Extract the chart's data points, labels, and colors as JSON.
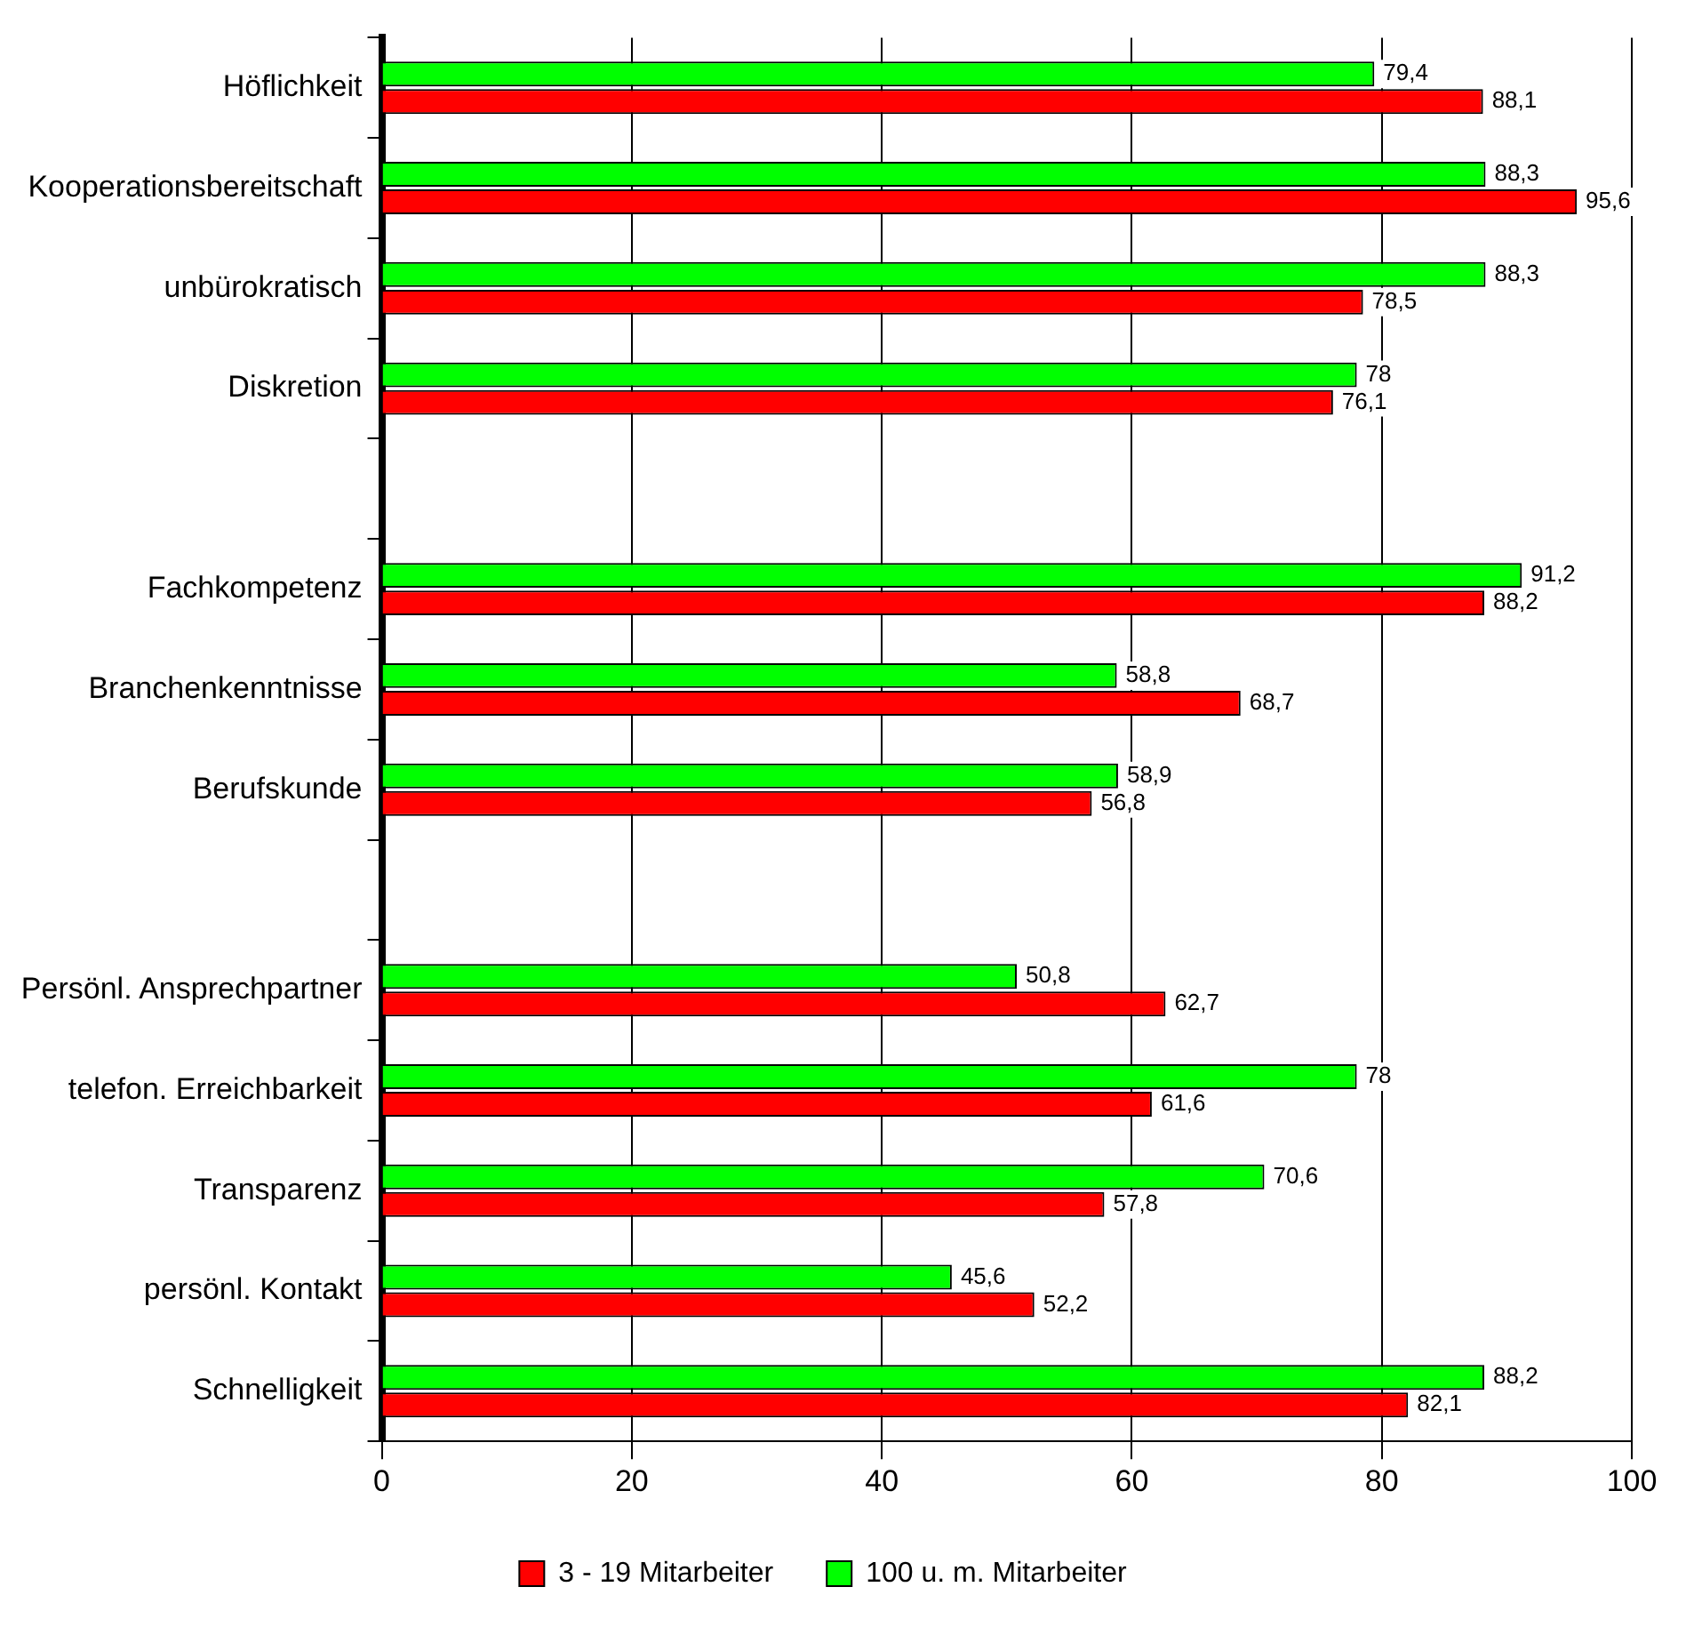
{
  "chart_data": {
    "type": "bar",
    "orientation": "horizontal",
    "categories": [
      "Höflichkeit",
      "Kooperationsbereitschaft",
      "unbürokratisch",
      "Diskretion",
      null,
      "Fachkompetenz",
      "Branchenkenntnisse",
      "Berufskunde",
      null,
      "Persönl. Ansprechpartner",
      "telefon. Erreichbarkeit",
      "Transparenz",
      "persönl. Kontakt",
      "Schnelligkeit"
    ],
    "series": [
      {
        "name": "100 u. m. Mitarbeiter",
        "color": "#00ff00",
        "values": [
          79.4,
          88.3,
          88.3,
          78,
          null,
          91.2,
          58.8,
          58.9,
          null,
          50.8,
          78,
          70.6,
          45.6,
          88.2
        ],
        "value_labels": [
          "79,4",
          "88,3",
          "88,3",
          "78",
          null,
          "91,2",
          "58,8",
          "58,9",
          null,
          "50,8",
          "78",
          "70,6",
          "45,6",
          "88,2"
        ]
      },
      {
        "name": "3 - 19 Mitarbeiter",
        "color": "#ff0000",
        "values": [
          88.1,
          95.6,
          78.5,
          76.1,
          null,
          88.2,
          68.7,
          56.8,
          null,
          62.7,
          61.6,
          57.8,
          52.2,
          82.1
        ],
        "value_labels": [
          "88,1",
          "95,6",
          "78,5",
          "76,1",
          null,
          "88,2",
          "68,7",
          "56,8",
          null,
          "62,7",
          "61,6",
          "57,8",
          "52,2",
          "82,1"
        ]
      }
    ],
    "xlim": [
      0,
      100
    ],
    "xticks": [
      0,
      20,
      40,
      60,
      80,
      100
    ],
    "grid": "x",
    "legend": "bottom"
  }
}
